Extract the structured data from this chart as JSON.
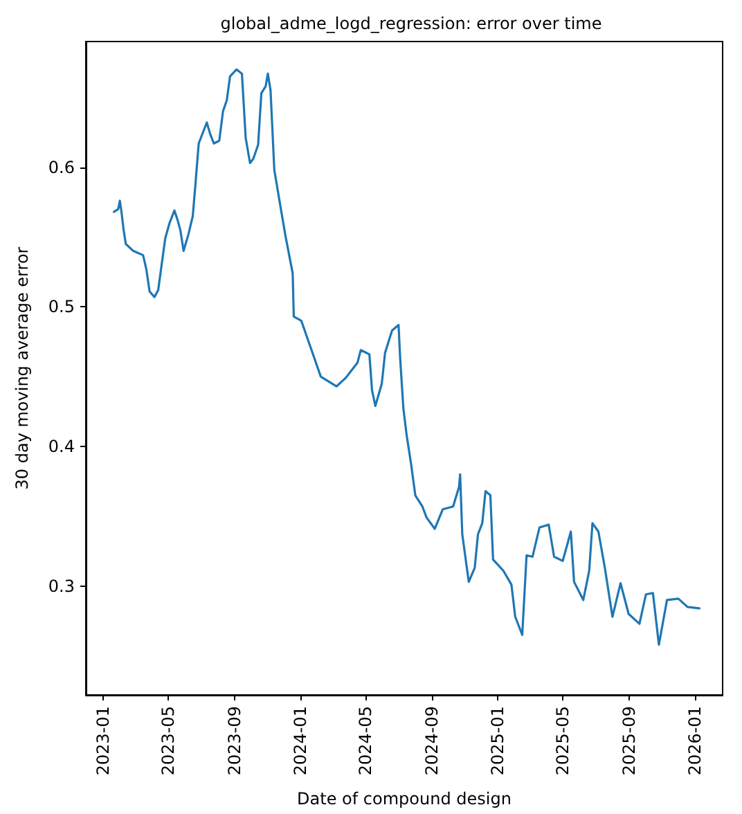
{
  "chart_data": {
    "type": "line",
    "title": "global_adme_logd_regression: error over time",
    "xlabel": "Date of compound design",
    "ylabel": "30 day moving average error",
    "x": [
      "2023-01-21",
      "2023-01-29",
      "2023-02-01",
      "2023-02-04",
      "2023-02-08",
      "2023-02-12",
      "2023-02-26",
      "2023-03-16",
      "2023-03-22",
      "2023-03-28",
      "2023-04-06",
      "2023-04-13",
      "2023-04-26",
      "2023-05-04",
      "2023-05-13",
      "2023-05-19",
      "2023-05-24",
      "2023-05-30",
      "2023-06-08",
      "2023-06-16",
      "2023-06-21",
      "2023-06-27",
      "2023-07-12",
      "2023-07-18",
      "2023-07-25",
      "2023-08-04",
      "2023-08-11",
      "2023-08-18",
      "2023-08-24",
      "2023-09-05",
      "2023-09-15",
      "2023-09-22",
      "2023-09-30",
      "2023-10-06",
      "2023-10-15",
      "2023-10-21",
      "2023-10-29",
      "2023-11-02",
      "2023-11-07",
      "2023-11-14",
      "2023-11-27",
      "2023-12-05",
      "2023-12-18",
      "2023-12-20",
      "2024-01-03",
      "2024-02-08",
      "2024-03-08",
      "2024-03-25",
      "2024-04-16",
      "2024-04-22",
      "2024-05-08",
      "2024-05-13",
      "2024-05-19",
      "2024-05-31",
      "2024-06-06",
      "2024-06-19",
      "2024-07-01",
      "2024-07-04",
      "2024-07-10",
      "2024-07-16",
      "2024-07-24",
      "2024-08-01",
      "2024-08-14",
      "2024-08-22",
      "2024-09-06",
      "2024-09-21",
      "2024-10-10",
      "2024-10-21",
      "2024-10-23",
      "2024-10-27",
      "2024-11-08",
      "2024-11-19",
      "2024-11-25",
      "2024-12-03",
      "2024-12-09",
      "2024-12-18",
      "2024-12-23",
      "2025-01-11",
      "2025-01-26",
      "2025-02-02",
      "2025-02-15",
      "2025-02-23",
      "2025-03-06",
      "2025-03-19",
      "2025-04-05",
      "2025-04-15",
      "2025-05-01",
      "2025-05-16",
      "2025-05-22",
      "2025-06-08",
      "2025-06-19",
      "2025-06-25",
      "2025-07-06",
      "2025-07-18",
      "2025-08-01",
      "2025-08-16",
      "2025-08-31",
      "2025-09-20",
      "2025-10-02",
      "2025-10-15",
      "2025-10-26",
      "2025-11-10",
      "2025-12-01",
      "2025-12-18",
      "2026-01-09"
    ],
    "series": [
      {
        "color": "#1f77b4",
        "values": [
          0.568,
          0.57,
          0.576,
          0.568,
          0.555,
          0.545,
          0.54,
          0.537,
          0.527,
          0.511,
          0.507,
          0.512,
          0.549,
          0.56,
          0.569,
          0.562,
          0.555,
          0.54,
          0.552,
          0.565,
          0.588,
          0.617,
          0.632,
          0.624,
          0.617,
          0.619,
          0.64,
          0.648,
          0.665,
          0.67,
          0.667,
          0.621,
          0.603,
          0.606,
          0.616,
          0.653,
          0.658,
          0.667,
          0.655,
          0.598,
          0.568,
          0.55,
          0.524,
          0.493,
          0.49,
          0.45,
          0.443,
          0.449,
          0.46,
          0.469,
          0.466,
          0.44,
          0.429,
          0.445,
          0.467,
          0.483,
          0.487,
          0.463,
          0.427,
          0.408,
          0.388,
          0.365,
          0.357,
          0.349,
          0.341,
          0.355,
          0.357,
          0.371,
          0.38,
          0.337,
          0.303,
          0.313,
          0.337,
          0.345,
          0.368,
          0.365,
          0.319,
          0.311,
          0.301,
          0.278,
          0.265,
          0.322,
          0.321,
          0.342,
          0.344,
          0.321,
          0.318,
          0.339,
          0.303,
          0.29,
          0.311,
          0.345,
          0.339,
          0.313,
          0.278,
          0.302,
          0.28,
          0.273,
          0.294,
          0.295,
          0.258,
          0.29,
          0.291,
          0.285,
          0.284
        ]
      }
    ],
    "xlim": [
      "2022-11-30",
      "2026-02-21"
    ],
    "xticks": [
      "2023-01",
      "2023-05",
      "2023-09",
      "2024-01",
      "2024-05",
      "2024-09",
      "2025-01",
      "2025-05",
      "2025-09",
      "2026-01"
    ],
    "ylim": [
      0.222,
      0.69
    ],
    "yticks": [
      0.3,
      0.4,
      0.5,
      0.6
    ],
    "grid": false,
    "marker": "none",
    "line_style": "solid"
  }
}
